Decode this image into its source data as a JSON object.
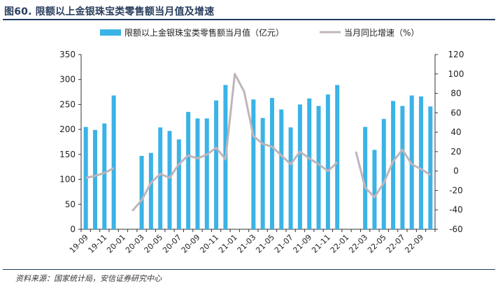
{
  "title": "图60. 限额以上金银珠宝类零售额当月值及增速",
  "source": "资料来源：国家统计局，安信证券研究中心",
  "colors": {
    "bar": "#3bb3e6",
    "line": "#bfb5ba",
    "title": "#2a3f5e",
    "axis": "#333333"
  },
  "chart_data": {
    "type": "bar+line",
    "categories": [
      "19-09",
      "19-10",
      "19-11",
      "19-12",
      "20-01",
      "20-02",
      "20-03",
      "20-04",
      "20-05",
      "20-06",
      "20-07",
      "20-08",
      "20-09",
      "20-10",
      "20-11",
      "20-12",
      "21-01",
      "21-02",
      "21-03",
      "21-04",
      "21-05",
      "21-06",
      "21-07",
      "21-08",
      "21-09",
      "21-10",
      "21-11",
      "21-12",
      "22-01",
      "22-02",
      "22-03",
      "22-04",
      "22-05",
      "22-06",
      "22-07",
      "22-08",
      "22-09",
      "22-10"
    ],
    "x_tick_labels": [
      "19-09",
      "19-11",
      "20-01",
      "20-03",
      "20-05",
      "20-07",
      "20-09",
      "20-11",
      "21-01",
      "21-03",
      "21-05",
      "21-07",
      "21-09",
      "21-11",
      "22-01",
      "22-03",
      "22-05",
      "22-07",
      "22-09"
    ],
    "series": [
      {
        "name": "限额以上金银珠宝类零售额当月值（亿元）",
        "type": "bar",
        "axis": "left",
        "values": [
          205,
          199,
          212,
          268,
          null,
          null,
          147,
          153,
          204,
          197,
          180,
          235,
          222,
          222,
          258,
          289,
          null,
          null,
          260,
          223,
          263,
          240,
          204,
          250,
          262,
          247,
          270,
          289,
          null,
          null,
          205,
          159,
          221,
          257,
          247,
          268,
          266,
          246
        ]
      },
      {
        "name": "当月同比增速（%）",
        "type": "line",
        "axis": "right",
        "values": [
          -7,
          -5,
          -2,
          3,
          null,
          -41,
          -30,
          -12,
          -3,
          -7,
          7,
          16,
          13,
          17,
          24,
          12,
          100,
          82,
          36,
          28,
          25,
          16,
          7,
          20,
          13,
          7,
          0,
          9,
          null,
          20,
          -17,
          -27,
          -12,
          10,
          22,
          7,
          2,
          -4
        ]
      }
    ],
    "left_axis": {
      "min": 0,
      "max": 350,
      "step": 50,
      "ticks": [
        "0",
        "50",
        "100",
        "150",
        "200",
        "250",
        "300",
        "350"
      ]
    },
    "right_axis": {
      "min": -60,
      "max": 120,
      "step": 20,
      "ticks": [
        "-60",
        "-40",
        "-20",
        "0",
        "20",
        "40",
        "60",
        "80",
        "100",
        "120"
      ]
    },
    "legend": {
      "position": "top",
      "items": [
        {
          "label": "限额以上金银珠宝类零售额当月值（亿元）",
          "kind": "bar"
        },
        {
          "label": "当月同比增速（%）",
          "kind": "line"
        }
      ]
    }
  }
}
